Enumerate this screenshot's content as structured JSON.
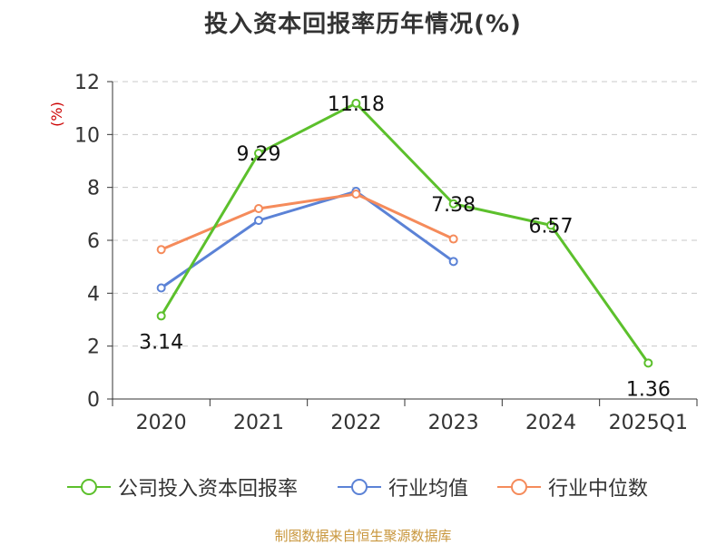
{
  "chart_data": {
    "type": "line",
    "title": "投入资本回报率历年情况(%)",
    "ylabel": "(%)",
    "xlabel": "",
    "categories": [
      "2020",
      "2021",
      "2022",
      "2023",
      "2024",
      "2025Q1"
    ],
    "ylim": [
      0,
      12
    ],
    "yticks": [
      0,
      2,
      4,
      6,
      8,
      10,
      12
    ],
    "grid": true,
    "legend_position": "bottom",
    "series": [
      {
        "name": "公司投入资本回报率",
        "color": "#5cc02c",
        "values": [
          3.14,
          9.29,
          11.18,
          7.38,
          6.57,
          1.36
        ],
        "data_labels": [
          "3.14",
          "9.29",
          "11.18",
          "7.38",
          "6.57",
          "1.36"
        ]
      },
      {
        "name": "行业均值",
        "color": "#5b82d6",
        "values": [
          4.2,
          6.75,
          7.85,
          5.2,
          null,
          null
        ]
      },
      {
        "name": "行业中位数",
        "color": "#f58b5b",
        "values": [
          5.65,
          7.2,
          7.75,
          6.05,
          null,
          null
        ]
      }
    ]
  },
  "footer": {
    "source": "制图数据来自恒生聚源数据库"
  }
}
